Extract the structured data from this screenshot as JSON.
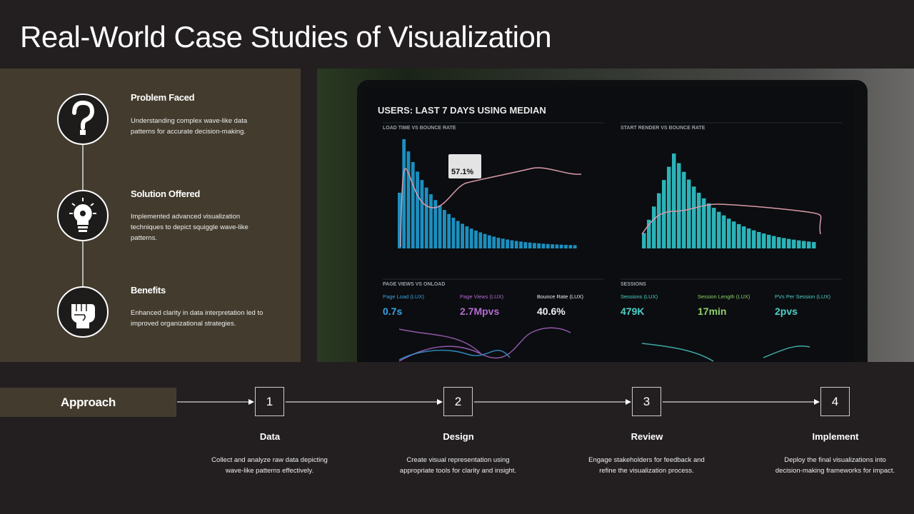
{
  "header": {
    "title": "Real-World Case Studies of Visualization"
  },
  "features": [
    {
      "title": "Problem Faced",
      "text": "Understanding complex wave-like data patterns for accurate decision-making."
    },
    {
      "title": "Solution Offered",
      "text": "Implemented advanced visualization techniques to depict squiggle wave-like patterns."
    },
    {
      "title": "Benefits",
      "text": "Enhanced clarity in data interpretation led to improved organizational strategies."
    }
  ],
  "approach": {
    "label": "Approach",
    "steps": [
      {
        "number": "1",
        "title": "Data",
        "text": "Collect and analyze raw data depicting wave-like patterns effectively."
      },
      {
        "number": "2",
        "title": "Design",
        "text": "Create visual representation using appropriate tools for clarity and insight."
      },
      {
        "number": "3",
        "title": "Review",
        "text": "Engage stakeholders for feedback and refine the visualization process."
      },
      {
        "number": "4",
        "title": "Implement",
        "text": "Deploy the final visualizations into decision-making frameworks for impact."
      }
    ]
  },
  "dashboard": {
    "heading": "USERS: LAST 7 DAYS USING MEDIAN",
    "panels": [
      "LOAD TIME VS BOUNCE RATE",
      "START RENDER VS BOUNCE RATE",
      "PAGE VIEWS VS ONLOAD",
      "SESSIONS"
    ],
    "tooltip": "57.1%",
    "metrics": [
      {
        "label": "Page Load (LUX)",
        "value": "0.7s"
      },
      {
        "label": "Page Views (LUX)",
        "value": "2.7Mpvs"
      },
      {
        "label": "Bounce Rate (LUX)",
        "value": "40.6%"
      },
      {
        "label": "Sessions (LUX)",
        "value": "479K"
      },
      {
        "label": "Session Length (LUX)",
        "value": "17min"
      },
      {
        "label": "PVs Per Session (LUX)",
        "value": "2pvs"
      }
    ]
  }
}
